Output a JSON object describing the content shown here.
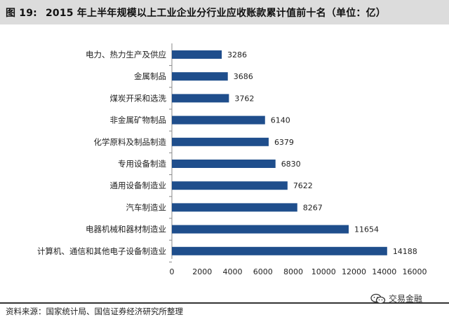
{
  "header": {
    "figure_label": "图 19:",
    "title": "2015 年上半年规模以上工业企业分行业应收账款累计值前十名（单位：亿）"
  },
  "chart_data": {
    "type": "bar",
    "orientation": "horizontal",
    "categories": [
      "电力、热力生产及供应",
      "金属制品",
      "煤炭开采和选洗",
      "非金属矿物制品",
      "化学原料及制品制造",
      "专用设备制造",
      "通用设备制造业",
      "汽车制造业",
      "电器机械和器材制造业",
      "计算机、通信和其他电子设备制造业"
    ],
    "values": [
      3286,
      3686,
      3762,
      6140,
      6379,
      6830,
      7622,
      8267,
      11654,
      14188
    ],
    "xlim": [
      0,
      16000
    ],
    "xticks": [
      0,
      2000,
      4000,
      6000,
      8000,
      10000,
      12000,
      14000,
      16000
    ],
    "bar_color": "#1f4e8c",
    "grid": false,
    "legend": "none"
  },
  "footer": {
    "source": "资料来源：国家统计局、国信证券经济研究所整理",
    "watermark": "交易金融"
  }
}
